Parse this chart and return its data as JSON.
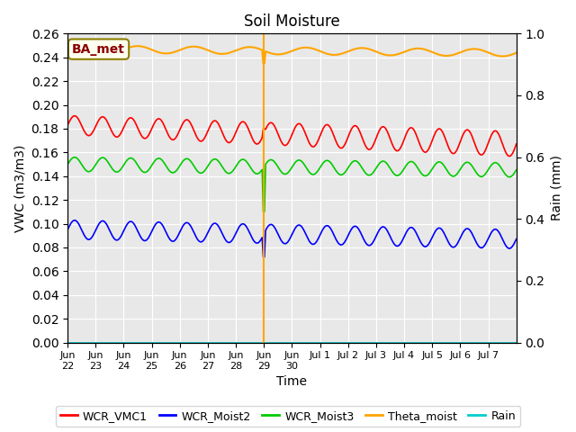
{
  "title": "Soil Moisture",
  "xlabel": "Time",
  "ylabel_left": "VWC (m3/m3)",
  "ylabel_right": "Rain (mm)",
  "ylim_left": [
    0.0,
    0.26
  ],
  "ylim_right": [
    0.0,
    1.0
  ],
  "yticks_left": [
    0.0,
    0.02,
    0.04,
    0.06,
    0.08,
    0.1,
    0.12,
    0.14,
    0.16,
    0.18,
    0.2,
    0.22,
    0.24,
    0.26
  ],
  "yticks_right": [
    0.0,
    0.2,
    0.4,
    0.6,
    0.8,
    1.0
  ],
  "xtick_labels": [
    "Jun\n22",
    "Jun\n23",
    "Jun\n24",
    "Jun\n25",
    "Jun\n26",
    "Jun\n27",
    "Jun\n28",
    "Jun\n29",
    "Jun\n30",
    "Jul 1",
    "Jul 2",
    "Jul 3",
    "Jul 4",
    "Jul 5",
    "Jul 6",
    "Jul 7"
  ],
  "annotation_text": "BA_met",
  "annotation_color": "#8B0000",
  "annotation_bg": "#FFFFF0",
  "annotation_border": "#8B8000",
  "background_color": "#E8E8E8",
  "line_colors": {
    "WCR_VMC1": "#FF0000",
    "WCR_Moist2": "#0000FF",
    "WCR_Moist3": "#00CC00",
    "Theta_moist": "#FFA500",
    "Rain": "#00CCCC"
  },
  "legend_labels": [
    "WCR_VMC1",
    "WCR_Moist2",
    "WCR_Moist3",
    "Theta_moist",
    "Rain"
  ],
  "n_days": 16,
  "spike_day": 7.0
}
